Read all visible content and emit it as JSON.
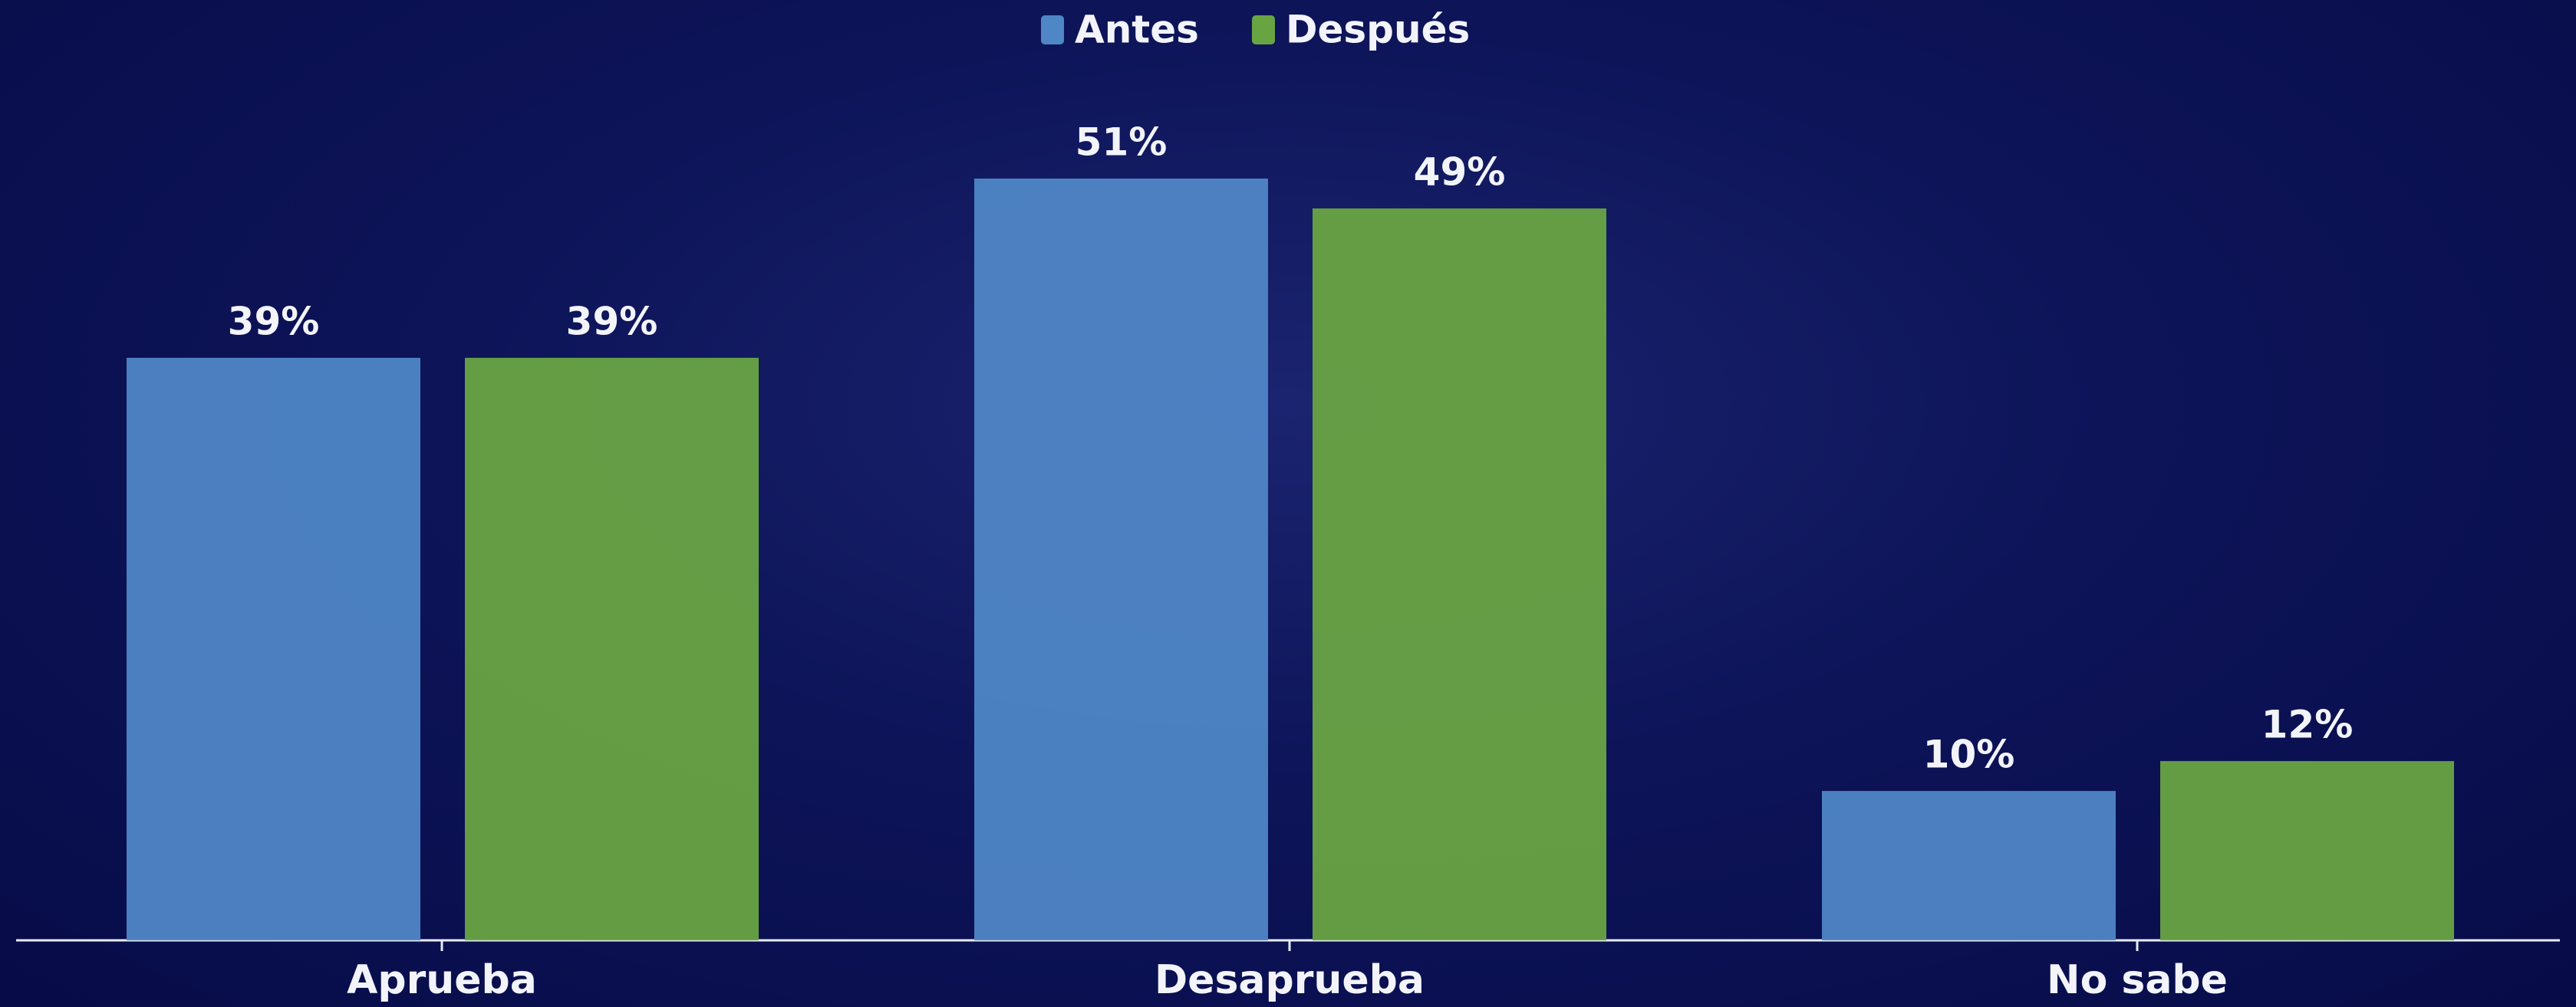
{
  "chart_data": {
    "type": "bar",
    "categories": [
      "Aprueba",
      "Desaprueba",
      "No sabe"
    ],
    "series": [
      {
        "name": "Antes",
        "color": "#4f86c6",
        "values": [
          39,
          51,
          10
        ],
        "value_labels": [
          "39%",
          "51%",
          "10%"
        ]
      },
      {
        "name": "Después",
        "color": "#69a443",
        "values": [
          39,
          49,
          12
        ],
        "value_labels": [
          "39%",
          "49%",
          "12%"
        ]
      }
    ],
    "legend": "top"
  }
}
